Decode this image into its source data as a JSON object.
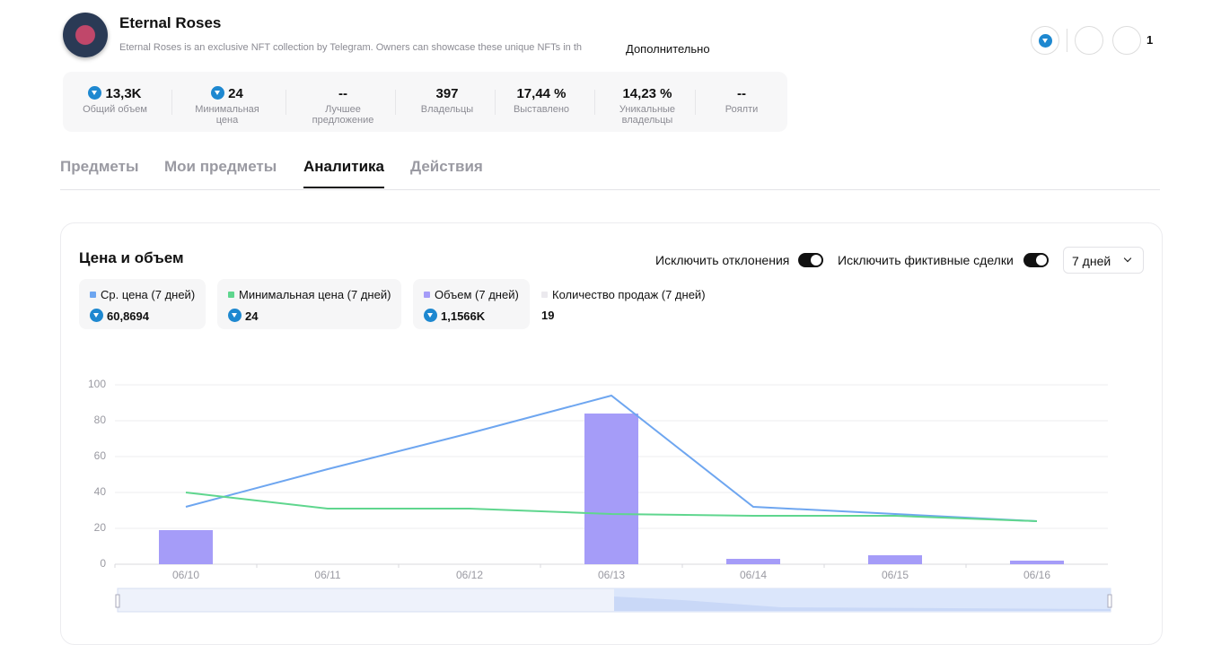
{
  "header": {
    "title": "Eternal Roses",
    "description": "Eternal Roses is an exclusive NFT collection by Telegram. Owners can showcase these unique NFTs in th",
    "more": "Дополнительно",
    "favorites": "1"
  },
  "stats": [
    {
      "value": "13,3K",
      "label": "Общий объем",
      "icon": "ton"
    },
    {
      "value": "24",
      "label": "Минимальная цена",
      "icon": "ton"
    },
    {
      "value": "--",
      "label": "Лучшее предложение"
    },
    {
      "value": "397",
      "label": "Владельцы"
    },
    {
      "value": "17,44 %",
      "label": "Выставлено"
    },
    {
      "value": "14,23 %",
      "label": "Уникальные владельцы"
    },
    {
      "value": "--",
      "label": "Роялти"
    }
  ],
  "tabs": [
    "Предметы",
    "Мои предметы",
    "Аналитика",
    "Действия"
  ],
  "active_tab": 2,
  "panel": {
    "title": "Цена и объем",
    "toggles": [
      "Исключить отклонения",
      "Исключить фиктивные сделки"
    ],
    "period": "7 дней",
    "sales": {
      "name": "Количество продаж (7 дней)",
      "color": "#ebe9ee",
      "total": "19"
    }
  },
  "chart_data": {
    "type": "combo",
    "categories": [
      "06/10",
      "06/11",
      "06/12",
      "06/13",
      "06/14",
      "06/15",
      "06/16"
    ],
    "ylim": [
      0,
      100
    ],
    "yticks": [
      0,
      20,
      40,
      60,
      80,
      100
    ],
    "grid": true,
    "series": [
      {
        "name": "Ср. цена (7 дней)",
        "color": "#6ea6f0",
        "kind": "line",
        "total": "60,8694",
        "values": [
          32,
          53,
          73,
          94,
          32,
          28,
          24
        ]
      },
      {
        "name": "Минимальная цена (7 дней)",
        "color": "#5fd68e",
        "kind": "line",
        "total": "24",
        "values": [
          40,
          31,
          31,
          28,
          27,
          27,
          24
        ]
      },
      {
        "name": "Объем (7 дней)",
        "color": "#a59cf8",
        "kind": "bar",
        "total": "1,1566K",
        "values": [
          19,
          0,
          0,
          84,
          3,
          5,
          2
        ]
      }
    ]
  }
}
